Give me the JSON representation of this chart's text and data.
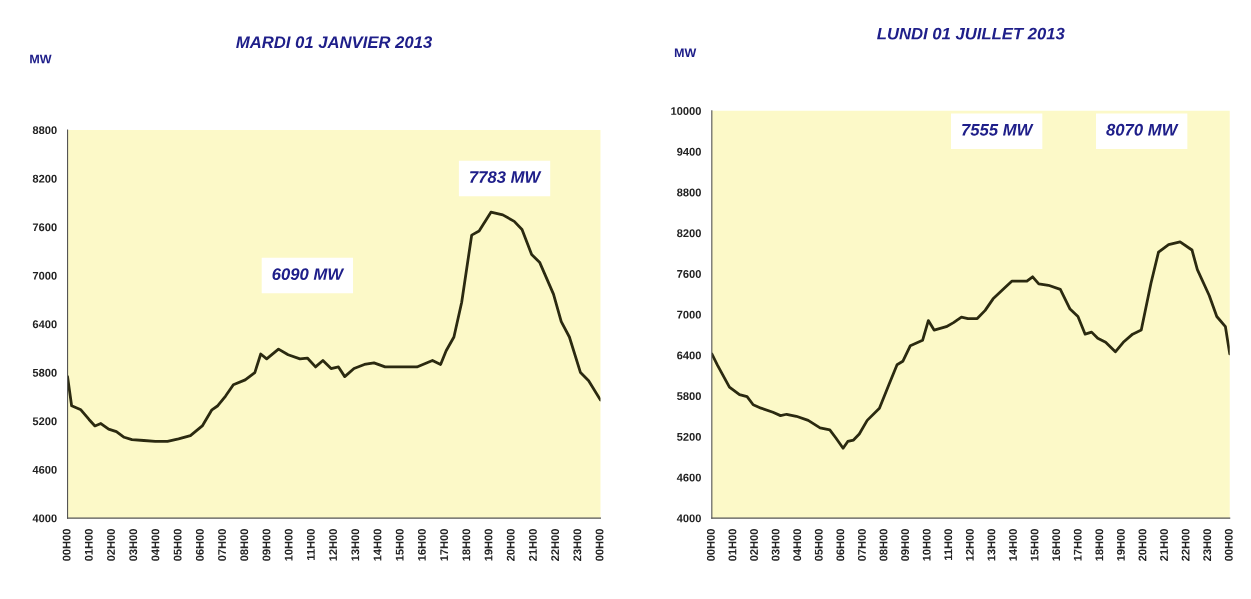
{
  "chart_data": [
    {
      "type": "line",
      "title": "MARDI 01 JANVIER 2013",
      "ylabel": "MW",
      "xlim": [
        "2013-01-01T00:00",
        "2013-01-02T00:00"
      ],
      "ylim": [
        4000,
        8800
      ],
      "yticks": [
        4000,
        4600,
        5200,
        5800,
        6400,
        7000,
        7600,
        8200,
        8800
      ],
      "xticks": [
        {
          "value": "2013-01-01T00:00",
          "label": "00H00"
        },
        {
          "value": "2013-01-01T01:00",
          "label": "01H00"
        },
        {
          "value": "2013-01-01T02:00",
          "label": "02H00"
        },
        {
          "value": "2013-01-01T03:00",
          "label": "03H00"
        },
        {
          "value": "2013-01-01T04:00",
          "label": "04H00"
        },
        {
          "value": "2013-01-01T05:00",
          "label": "05H00"
        },
        {
          "value": "2013-01-01T06:00",
          "label": "06H00"
        },
        {
          "value": "2013-01-01T07:00",
          "label": "07H00"
        },
        {
          "value": "2013-01-01T08:00",
          "label": "08H00"
        },
        {
          "value": "2013-01-01T09:00",
          "label": "09H00"
        },
        {
          "value": "2013-01-01T10:00",
          "label": "10H00"
        },
        {
          "value": "2013-01-01T11:00",
          "label": "11H00"
        },
        {
          "value": "2013-01-01T12:00",
          "label": "12H00"
        },
        {
          "value": "2013-01-01T13:00",
          "label": "13H00"
        },
        {
          "value": "2013-01-01T14:00",
          "label": "14H00"
        },
        {
          "value": "2013-01-01T15:00",
          "label": "15H00"
        },
        {
          "value": "2013-01-01T16:00",
          "label": "16H00"
        },
        {
          "value": "2013-01-01T17:00",
          "label": "17H00"
        },
        {
          "value": "2013-01-01T18:00",
          "label": "18H00"
        },
        {
          "value": "2013-01-01T19:00",
          "label": "19H00"
        },
        {
          "value": "2013-01-01T20:00",
          "label": "20H00"
        },
        {
          "value": "2013-01-01T21:00",
          "label": "21H00"
        },
        {
          "value": "2013-01-01T22:00",
          "label": "22H00"
        },
        {
          "value": "2013-01-01T23:00",
          "label": "23H00"
        },
        {
          "value": "2013-01-02T00:00",
          "label": "00H00"
        }
      ],
      "x": [
        "2013-01-01T00:00",
        "2013-01-01T00:11",
        "2013-01-01T00:36",
        "2013-01-01T00:58",
        "2013-01-01T01:14",
        "2013-01-01T01:30",
        "2013-01-01T01:51",
        "2013-01-01T02:12",
        "2013-01-01T02:33",
        "2013-01-01T02:54",
        "2013-01-01T03:26",
        "2013-01-01T03:57",
        "2013-01-01T04:30",
        "2013-01-01T05:00",
        "2013-01-01T05:32",
        "2013-01-01T06:04",
        "2013-01-01T06:30",
        "2013-01-01T06:46",
        "2013-01-01T07:07",
        "2013-01-01T07:28",
        "2013-01-01T08:00",
        "2013-01-01T08:26",
        "2013-01-01T08:42",
        "2013-01-01T08:58",
        "2013-01-01T09:30",
        "2013-01-01T09:56",
        "2013-01-01T10:28",
        "2013-01-01T10:48",
        "2013-01-01T11:10",
        "2013-01-01T11:30",
        "2013-01-01T11:52",
        "2013-01-01T12:12",
        "2013-01-01T12:29",
        "2013-01-01T12:54",
        "2013-01-01T13:22",
        "2013-01-01T13:48",
        "2013-01-01T14:18",
        "2013-01-01T14:51",
        "2013-01-01T15:44",
        "2013-01-01T16:26",
        "2013-01-01T16:48",
        "2013-01-01T17:03",
        "2013-01-01T17:24",
        "2013-01-01T17:45",
        "2013-01-01T18:12",
        "2013-01-01T18:32",
        "2013-01-01T19:04",
        "2013-01-01T19:36",
        "2013-01-01T20:07",
        "2013-01-01T20:28",
        "2013-01-01T20:54",
        "2013-01-01T21:16",
        "2013-01-01T21:53",
        "2013-01-01T22:14",
        "2013-01-01T22:36",
        "2013-01-01T23:06",
        "2013-01-01T23:28",
        "2013-01-02T00:00"
      ],
      "series": [
        {
          "color": "#2b2a10",
          "values": [
            5750,
            5390,
            5340,
            5220,
            5140,
            5170,
            5100,
            5070,
            5000,
            4970,
            4960,
            4950,
            4950,
            4980,
            5020,
            5140,
            5340,
            5390,
            5510,
            5650,
            5710,
            5800,
            6030,
            5970,
            6090,
            6020,
            5970,
            5980,
            5870,
            5950,
            5850,
            5870,
            5750,
            5850,
            5900,
            5920,
            5870,
            5870,
            5870,
            5950,
            5900,
            6070,
            6240,
            6670,
            7500,
            7550,
            7783,
            7750,
            7670,
            7570,
            7260,
            7160,
            6770,
            6430,
            6240,
            5800,
            5700,
            5460
          ]
        }
      ],
      "annotations": [
        "6090 MW",
        "7783 MW"
      ],
      "grid": false,
      "legend": false,
      "marker": "none",
      "line_style": "solid"
    },
    {
      "type": "line",
      "title": "LUNDI 01 JUILLET 2013",
      "ylabel": "MW",
      "xlim": [
        "2013-07-01T00:00",
        "2013-07-02T00:00"
      ],
      "ylim": [
        4000,
        10000
      ],
      "yticks": [
        4000,
        4600,
        5200,
        5800,
        6400,
        7000,
        7600,
        8200,
        8800,
        9400,
        10000
      ],
      "xticks": [
        {
          "value": "2013-07-01T00:00",
          "label": "00H00"
        },
        {
          "value": "2013-07-01T01:00",
          "label": "01H00"
        },
        {
          "value": "2013-07-01T02:00",
          "label": "02H00"
        },
        {
          "value": "2013-07-01T03:00",
          "label": "03H00"
        },
        {
          "value": "2013-07-01T04:00",
          "label": "04H00"
        },
        {
          "value": "2013-07-01T05:00",
          "label": "05H00"
        },
        {
          "value": "2013-07-01T06:00",
          "label": "06H00"
        },
        {
          "value": "2013-07-01T07:00",
          "label": "07H00"
        },
        {
          "value": "2013-07-01T08:00",
          "label": "08H00"
        },
        {
          "value": "2013-07-01T09:00",
          "label": "09H00"
        },
        {
          "value": "2013-07-01T10:00",
          "label": "10H00"
        },
        {
          "value": "2013-07-01T11:00",
          "label": "11H00"
        },
        {
          "value": "2013-07-01T12:00",
          "label": "12H00"
        },
        {
          "value": "2013-07-01T13:00",
          "label": "13H00"
        },
        {
          "value": "2013-07-01T14:00",
          "label": "14H00"
        },
        {
          "value": "2013-07-01T15:00",
          "label": "15H00"
        },
        {
          "value": "2013-07-01T16:00",
          "label": "16H00"
        },
        {
          "value": "2013-07-01T17:00",
          "label": "17H00"
        },
        {
          "value": "2013-07-01T18:00",
          "label": "18H00"
        },
        {
          "value": "2013-07-01T19:00",
          "label": "19H00"
        },
        {
          "value": "2013-07-01T20:00",
          "label": "20H00"
        },
        {
          "value": "2013-07-01T21:00",
          "label": "21H00"
        },
        {
          "value": "2013-07-01T22:00",
          "label": "22H00"
        },
        {
          "value": "2013-07-01T23:00",
          "label": "23H00"
        },
        {
          "value": "2013-07-02T00:00",
          "label": "00H00"
        }
      ],
      "x": [
        "2013-07-01T00:00",
        "2013-07-01T00:16",
        "2013-07-01T00:49",
        "2013-07-01T01:17",
        "2013-07-01T01:38",
        "2013-07-01T01:55",
        "2013-07-01T02:17",
        "2013-07-01T02:50",
        "2013-07-01T03:11",
        "2013-07-01T03:28",
        "2013-07-01T03:55",
        "2013-07-01T04:28",
        "2013-07-01T05:01",
        "2013-07-01T05:28",
        "2013-07-01T05:45",
        "2013-07-01T06:05",
        "2013-07-01T06:18",
        "2013-07-01T06:34",
        "2013-07-01T06:50",
        "2013-07-01T07:12",
        "2013-07-01T07:46",
        "2013-07-01T08:12",
        "2013-07-01T08:35",
        "2013-07-01T08:51",
        "2013-07-01T09:12",
        "2013-07-01T09:46",
        "2013-07-01T10:02",
        "2013-07-01T10:18",
        "2013-07-01T10:52",
        "2013-07-01T11:12",
        "2013-07-01T11:34",
        "2013-07-01T11:52",
        "2013-07-01T12:18",
        "2013-07-01T12:40",
        "2013-07-01T13:02",
        "2013-07-01T13:36",
        "2013-07-01T13:54",
        "2013-07-01T14:36",
        "2013-07-01T14:52",
        "2013-07-01T15:09",
        "2013-07-01T15:36",
        "2013-07-01T16:09",
        "2013-07-01T16:36",
        "2013-07-01T16:58",
        "2013-07-01T17:18",
        "2013-07-01T17:36",
        "2013-07-01T17:53",
        "2013-07-01T18:15",
        "2013-07-01T18:42",
        "2013-07-01T19:04",
        "2013-07-01T19:30",
        "2013-07-01T19:54",
        "2013-07-01T20:21",
        "2013-07-01T20:42",
        "2013-07-01T21:10",
        "2013-07-01T21:42",
        "2013-07-01T22:15",
        "2013-07-01T22:30",
        "2013-07-01T23:03",
        "2013-07-01T23:24",
        "2013-07-01T23:48",
        "2013-07-02T00:00"
      ],
      "series": [
        {
          "color": "#2b2a10",
          "values": [
            6420,
            6250,
            5930,
            5820,
            5790,
            5670,
            5620,
            5560,
            5510,
            5530,
            5500,
            5440,
            5330,
            5300,
            5180,
            5030,
            5130,
            5150,
            5240,
            5440,
            5620,
            5960,
            6260,
            6310,
            6540,
            6620,
            6910,
            6770,
            6820,
            6880,
            6960,
            6940,
            6940,
            7060,
            7230,
            7400,
            7490,
            7490,
            7555,
            7450,
            7430,
            7370,
            7080,
            6970,
            6710,
            6740,
            6650,
            6590,
            6450,
            6590,
            6710,
            6770,
            7460,
            7920,
            8030,
            8070,
            7950,
            7660,
            7280,
            6970,
            6820,
            6420
          ]
        }
      ],
      "annotations": [
        "7555 MW",
        "8070 MW"
      ],
      "grid": false,
      "legend": false,
      "marker": "none",
      "line_style": "solid"
    }
  ]
}
